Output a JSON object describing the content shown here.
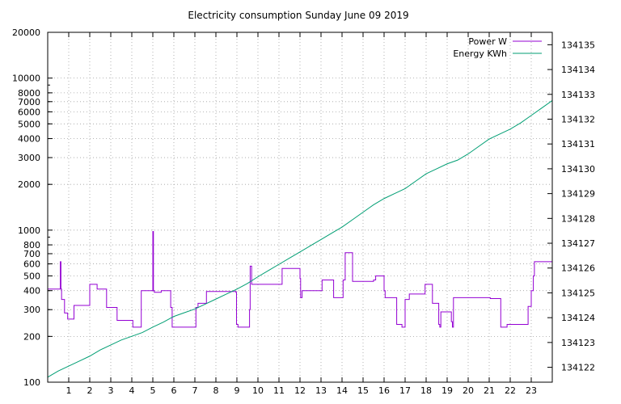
{
  "chart_data": {
    "type": "line",
    "title": "Electricity consumption Sunday June 09 2019",
    "x_ticks": [
      "1",
      "2",
      "3",
      "4",
      "5",
      "6",
      "7",
      "8",
      "9",
      "10",
      "11",
      "12",
      "13",
      "14",
      "15",
      "16",
      "17",
      "18",
      "19",
      "20",
      "21",
      "22",
      "23"
    ],
    "xlim": [
      0,
      24
    ],
    "y_left": {
      "scale": "log",
      "lim": [
        100,
        20000
      ],
      "ticks": [
        {
          "value": 100,
          "label": "100"
        },
        {
          "value": 200,
          "label": "200"
        },
        {
          "value": 300,
          "label": "300"
        },
        {
          "value": 400,
          "label": "400"
        },
        {
          "value": 500,
          "label": "500"
        },
        {
          "value": 600,
          "label": "600"
        },
        {
          "value": 700,
          "label": "700"
        },
        {
          "value": 800,
          "label": "800"
        },
        {
          "value": 1000,
          "label": "1000"
        },
        {
          "value": 2000,
          "label": "2000"
        },
        {
          "value": 3000,
          "label": "3000"
        },
        {
          "value": 4000,
          "label": "4000"
        },
        {
          "value": 5000,
          "label": "5000"
        },
        {
          "value": 6000,
          "label": "6000"
        },
        {
          "value": 7000,
          "label": "7000"
        },
        {
          "value": 8000,
          "label": "8000"
        },
        {
          "value": 10000,
          "label": "10000"
        },
        {
          "value": 20000,
          "label": "20000"
        }
      ]
    },
    "y_right": {
      "scale": "linear",
      "lim": [
        134121.4,
        134135.5
      ],
      "ticks": [
        134122,
        134123,
        134124,
        134125,
        134126,
        134127,
        134128,
        134129,
        134130,
        134131,
        134132,
        134133,
        134134,
        134135
      ]
    },
    "legend": {
      "placement": "top-right"
    },
    "grid": true,
    "series": [
      {
        "name": "Power W",
        "axis": "left",
        "color": "#9400d3",
        "step": true,
        "x": [
          0,
          0.6,
          0.63,
          0.66,
          0.8,
          0.95,
          1.25,
          1.28,
          1.35,
          1.45,
          2.0,
          2.05,
          2.35,
          2.8,
          3.3,
          4.05,
          4.45,
          5.0,
          5.03,
          5.07,
          5.4,
          5.85,
          5.92,
          7.0,
          7.05,
          7.15,
          7.5,
          7.55,
          8.5,
          8.95,
          8.98,
          9.05,
          9.6,
          9.63,
          9.7,
          10.7,
          11.15,
          12.0,
          12.03,
          12.1,
          13.05,
          13.6,
          14.05,
          14.1,
          14.15,
          14.5,
          15.5,
          15.6,
          16.0,
          16.05,
          16.6,
          16.85,
          17.0,
          17.2,
          17.95,
          18.05,
          18.3,
          18.6,
          18.65,
          18.7,
          19.2,
          19.25,
          19.3,
          20.0,
          21.05,
          21.55,
          21.7,
          21.85,
          22.85,
          23.0,
          23.1,
          23.15,
          24
        ],
        "y": [
          410,
          620,
          410,
          350,
          285,
          260,
          320,
          320,
          320,
          320,
          440,
          440,
          410,
          310,
          255,
          230,
          400,
          980,
          400,
          390,
          400,
          310,
          230,
          230,
          310,
          330,
          330,
          395,
          395,
          390,
          240,
          230,
          300,
          580,
          440,
          440,
          560,
          480,
          360,
          400,
          470,
          360,
          470,
          470,
          710,
          460,
          470,
          500,
          400,
          360,
          240,
          230,
          350,
          380,
          440,
          440,
          330,
          240,
          230,
          290,
          250,
          230,
          360,
          360,
          355,
          230,
          230,
          240,
          315,
          400,
          500,
          620,
          380
        ]
      },
      {
        "name": "Energy KWh",
        "axis": "right",
        "color": "#009e73",
        "step": false,
        "x": [
          0,
          0.5,
          1.0,
          1.5,
          2.0,
          2.5,
          3.0,
          3.5,
          4.0,
          4.5,
          5.0,
          5.5,
          6.0,
          6.5,
          7.0,
          7.5,
          8.0,
          8.5,
          9.0,
          9.5,
          10.0,
          10.5,
          11.0,
          11.5,
          12.0,
          12.5,
          13.0,
          13.5,
          14.0,
          14.5,
          15.0,
          15.5,
          16.0,
          16.5,
          17.0,
          17.5,
          18.0,
          18.5,
          19.0,
          19.5,
          20.0,
          20.5,
          21.0,
          21.5,
          22.0,
          22.5,
          23.0,
          23.5,
          24.0
        ],
        "y": [
          134121.6,
          134121.85,
          134122.05,
          134122.25,
          134122.45,
          134122.7,
          134122.9,
          134123.1,
          134123.25,
          134123.4,
          134123.62,
          134123.82,
          134124.05,
          134124.2,
          134124.35,
          134124.55,
          134124.75,
          134124.95,
          134125.15,
          134125.38,
          134125.65,
          134125.9,
          134126.15,
          134126.4,
          134126.65,
          134126.9,
          134127.15,
          134127.4,
          134127.65,
          134127.95,
          134128.25,
          134128.55,
          134128.8,
          134129.0,
          134129.2,
          134129.5,
          134129.8,
          134130.0,
          134130.2,
          134130.35,
          134130.6,
          134130.9,
          134131.2,
          134131.4,
          134131.6,
          134131.85,
          134132.15,
          134132.45,
          134132.75
        ]
      }
    ]
  }
}
